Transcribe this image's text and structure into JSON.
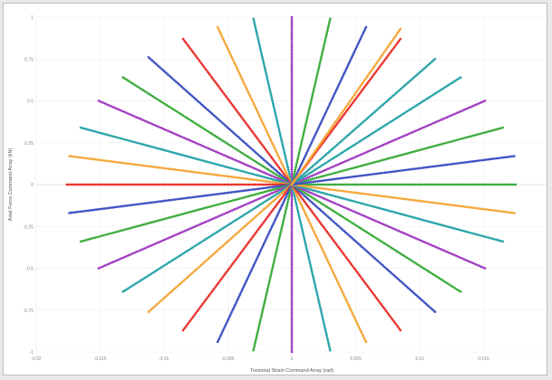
{
  "chart_data": {
    "type": "scatter",
    "title": "",
    "xlabel": "Torsional Strain Command Array (rad)",
    "ylabel": "Axial Force Command Array (kN)",
    "xlim": [
      -0.02,
      0.02
    ],
    "ylim": [
      -1,
      1
    ],
    "grid": true,
    "legend": "none",
    "x_ticks": [
      {
        "value": -0.02,
        "label": "-0.02"
      },
      {
        "value": -0.015,
        "label": "-0.015"
      },
      {
        "value": -0.01,
        "label": "-0.01"
      },
      {
        "value": -0.005,
        "label": "-0.005"
      },
      {
        "value": 0,
        "label": "0"
      },
      {
        "value": 0.005,
        "label": "0.005"
      },
      {
        "value": 0.01,
        "label": "0.01"
      },
      {
        "value": 0.015,
        "label": "0.015"
      }
    ],
    "y_ticks": [
      {
        "value": 1,
        "label": "1"
      },
      {
        "value": 0.75,
        "label": "0.75"
      },
      {
        "value": 0.5,
        "label": "0.5"
      },
      {
        "value": 0.25,
        "label": "0.25"
      },
      {
        "value": 0,
        "label": "0"
      },
      {
        "value": -0.25,
        "label": "-0.25"
      },
      {
        "value": -0.5,
        "label": "-0.5"
      },
      {
        "value": -0.75,
        "label": "-0.75"
      },
      {
        "value": -1,
        "label": "-1"
      }
    ],
    "series": [
      {
        "color": "#3cab3c",
        "start": [
          0,
          0
        ],
        "end": [
          0.0175,
          0
        ]
      },
      {
        "color": "#3cab3c",
        "start": [
          0,
          0
        ],
        "end": [
          0.0165,
          0.34
        ]
      },
      {
        "color": "#a03cc0",
        "start": [
          0,
          0
        ],
        "end": [
          0.0151,
          0.5
        ]
      },
      {
        "color": "#28a3a8",
        "start": [
          0,
          0
        ],
        "end": [
          0.0132,
          0.64
        ]
      },
      {
        "color": "#28a3a8",
        "start": [
          0,
          0
        ],
        "end": [
          0.0112,
          0.75
        ]
      },
      {
        "color": "#e8322d",
        "start": [
          0,
          0
        ],
        "end": [
          0.0085,
          0.87
        ]
      },
      {
        "color": "#3c50c2",
        "start": [
          0,
          0
        ],
        "end": [
          0.0058,
          0.94
        ]
      },
      {
        "color": "#3cab3c",
        "start": [
          0,
          0
        ],
        "end": [
          0.003,
          0.99
        ]
      },
      {
        "color": "#a03cc0",
        "start": [
          0,
          0
        ],
        "end": [
          0.0,
          1.0
        ]
      },
      {
        "color": "#28a3a8",
        "start": [
          0,
          0
        ],
        "end": [
          -0.003,
          0.99
        ]
      },
      {
        "color": "#f4a638",
        "start": [
          0,
          0
        ],
        "end": [
          -0.0058,
          0.94
        ]
      },
      {
        "color": "#e8322d",
        "start": [
          0,
          0
        ],
        "end": [
          -0.0085,
          0.87
        ]
      },
      {
        "color": "#3c50c2",
        "start": [
          0,
          0
        ],
        "end": [
          -0.0112,
          0.76
        ]
      },
      {
        "color": "#3cab3c",
        "start": [
          0,
          0
        ],
        "end": [
          -0.0132,
          0.64
        ]
      },
      {
        "color": "#a03cc0",
        "start": [
          0,
          0
        ],
        "end": [
          -0.0151,
          0.5
        ]
      },
      {
        "color": "#28a3a8",
        "start": [
          0,
          0
        ],
        "end": [
          -0.0165,
          0.34
        ]
      },
      {
        "color": "#f4a638",
        "start": [
          0,
          0
        ],
        "end": [
          -0.0174,
          0.17
        ]
      },
      {
        "color": "#e8322d",
        "start": [
          0,
          0
        ],
        "end": [
          -0.0176,
          0.0
        ]
      },
      {
        "color": "#3c50c2",
        "start": [
          0,
          0
        ],
        "end": [
          -0.0174,
          -0.17
        ]
      },
      {
        "color": "#3cab3c",
        "start": [
          0,
          0
        ],
        "end": [
          -0.0165,
          -0.34
        ]
      },
      {
        "color": "#a03cc0",
        "start": [
          0,
          0
        ],
        "end": [
          -0.0151,
          -0.5
        ]
      },
      {
        "color": "#28a3a8",
        "start": [
          0,
          0
        ],
        "end": [
          -0.0132,
          -0.64
        ]
      },
      {
        "color": "#f4a638",
        "start": [
          0,
          0
        ],
        "end": [
          -0.0112,
          -0.76
        ]
      },
      {
        "color": "#e8322d",
        "start": [
          0,
          0
        ],
        "end": [
          -0.0085,
          -0.87
        ]
      },
      {
        "color": "#3c50c2",
        "start": [
          0,
          0
        ],
        "end": [
          -0.0058,
          -0.94
        ]
      },
      {
        "color": "#3cab3c",
        "start": [
          0,
          0
        ],
        "end": [
          -0.003,
          -0.99
        ]
      },
      {
        "color": "#a03cc0",
        "start": [
          0,
          0
        ],
        "end": [
          0.0,
          -1.0
        ]
      },
      {
        "color": "#28a3a8",
        "start": [
          0,
          0
        ],
        "end": [
          0.003,
          -0.99
        ]
      },
      {
        "color": "#f4a638",
        "start": [
          0,
          0
        ],
        "end": [
          0.0058,
          -0.94
        ]
      },
      {
        "color": "#e8322d",
        "start": [
          0,
          0
        ],
        "end": [
          0.0085,
          -0.87
        ]
      },
      {
        "color": "#3c50c2",
        "start": [
          0,
          0
        ],
        "end": [
          0.0112,
          -0.76
        ]
      },
      {
        "color": "#3cab3c",
        "start": [
          0,
          0
        ],
        "end": [
          0.0132,
          -0.64
        ]
      },
      {
        "color": "#a03cc0",
        "start": [
          0,
          0
        ],
        "end": [
          0.0151,
          -0.5
        ]
      },
      {
        "color": "#28a3a8",
        "start": [
          0,
          0
        ],
        "end": [
          0.0165,
          -0.34
        ]
      },
      {
        "color": "#f4a638",
        "start": [
          0,
          0
        ],
        "end": [
          0.0174,
          -0.17
        ]
      },
      {
        "color": "#3c50c2",
        "start": [
          0,
          0
        ],
        "end": [
          0.0174,
          0.17
        ]
      },
      {
        "color": "#f4a638",
        "start": [
          0,
          0
        ],
        "end": [
          0.0085,
          0.93
        ]
      }
    ]
  }
}
